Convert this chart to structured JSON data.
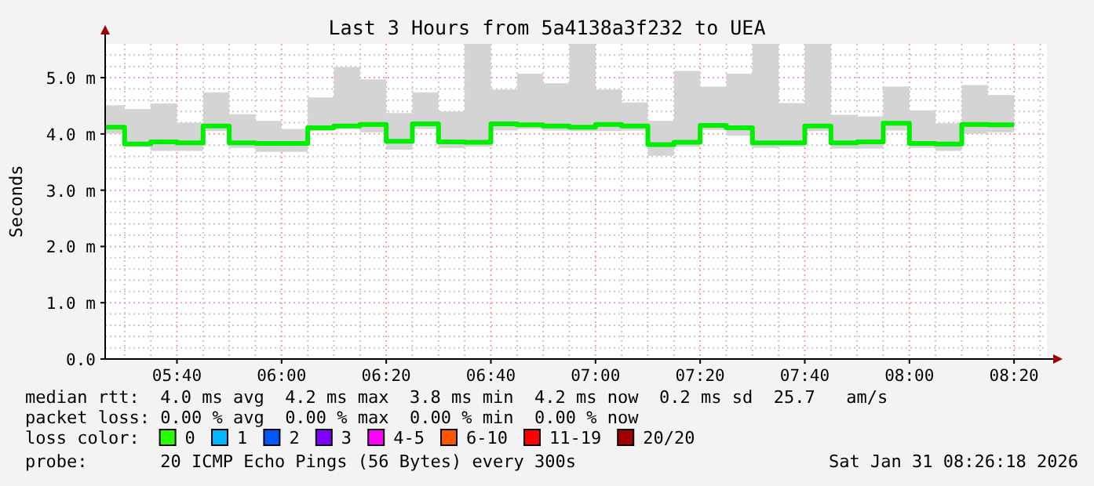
{
  "chart_data": {
    "type": "step",
    "title": "Last 3 Hours from 5a4138a3f232 to UEA",
    "ylabel": "Seconds",
    "xlim": [
      5.438,
      8.438
    ],
    "xticks": [
      {
        "value": 5.6667,
        "label": "05:40"
      },
      {
        "value": 6,
        "label": "06:00"
      },
      {
        "value": 6.3333,
        "label": "06:20"
      },
      {
        "value": 6.6667,
        "label": "06:40"
      },
      {
        "value": 7,
        "label": "07:00"
      },
      {
        "value": 7.3333,
        "label": "07:20"
      },
      {
        "value": 7.6667,
        "label": "07:40"
      },
      {
        "value": 8,
        "label": "08:00"
      },
      {
        "value": 8.3333,
        "label": "08:20"
      }
    ],
    "ylim": [
      0,
      5.6
    ],
    "yticks": [
      {
        "value": 0,
        "label": "0.0"
      },
      {
        "value": 1,
        "label": "1.0 m"
      },
      {
        "value": 2,
        "label": "2.0 m"
      },
      {
        "value": 3,
        "label": "3.0 m"
      },
      {
        "value": 4,
        "label": "4.0 m"
      },
      {
        "value": 5,
        "label": "5.0 m"
      }
    ],
    "grid": true,
    "x": [
      5.438,
      5.5,
      5.5833,
      5.6667,
      5.75,
      5.8333,
      5.9167,
      6,
      6.0833,
      6.1667,
      6.25,
      6.3333,
      6.4167,
      6.5,
      6.5833,
      6.6667,
      6.75,
      6.8333,
      6.9167,
      7,
      7.0833,
      7.1667,
      7.25,
      7.3333,
      7.4167,
      7.5,
      7.5833,
      7.6667,
      7.75,
      7.8333,
      7.9167,
      8,
      8.0833,
      8.1667,
      8.25,
      8.3333
    ],
    "series": [
      {
        "color": "#00ee00",
        "values": [
          4.12,
          3.82,
          3.86,
          3.84,
          4.14,
          3.84,
          3.83,
          3.83,
          4.11,
          4.14,
          4.17,
          3.87,
          4.18,
          3.86,
          3.85,
          4.18,
          4.16,
          4.14,
          4.12,
          4.17,
          4.14,
          3.81,
          3.85,
          4.15,
          4.11,
          3.84,
          3.84,
          4.14,
          3.84,
          3.86,
          4.19,
          3.83,
          3.82,
          4.17,
          4.16,
          4.16
        ],
        "upper": [
          4.51,
          4.44,
          4.54,
          4.2,
          4.74,
          4.35,
          4.23,
          4.09,
          4.65,
          5.19,
          4.97,
          4.37,
          4.74,
          4.4,
          5.6,
          4.79,
          5.07,
          4.9,
          5.6,
          4.79,
          4.56,
          4.23,
          5.12,
          4.84,
          5.07,
          5.6,
          4.55,
          5.6,
          4.34,
          4.31,
          4.84,
          4.42,
          4.19,
          4.87,
          4.69,
          4.69
        ],
        "lower": [
          4.0,
          3.79,
          3.7,
          3.7,
          4.05,
          3.75,
          3.68,
          3.68,
          4.05,
          4.09,
          4.03,
          3.72,
          4.09,
          3.75,
          3.77,
          4.06,
          4.09,
          4.06,
          4.05,
          4.05,
          4.06,
          3.61,
          3.77,
          4.07,
          3.97,
          3.75,
          3.77,
          4.05,
          3.74,
          3.74,
          4.06,
          3.75,
          3.7,
          4.0,
          4.03,
          4.03
        ]
      }
    ],
    "annotations": [
      "median rtt:  4.0 ms avg  4.2 ms max  3.8 ms min  4.2 ms now  0.2 ms sd  25.7   am/s",
      "packet loss: 0.00 % avg  0.00 % max  0.00 % min  0.00 % now",
      "loss color:  0  1  2  3  4-5  6-10  11-19  20/20",
      "probe:       20 ICMP Echo Pings (56 Bytes) every 300s",
      "Sat Jan 31 08:26:18 2026"
    ]
  }
}
